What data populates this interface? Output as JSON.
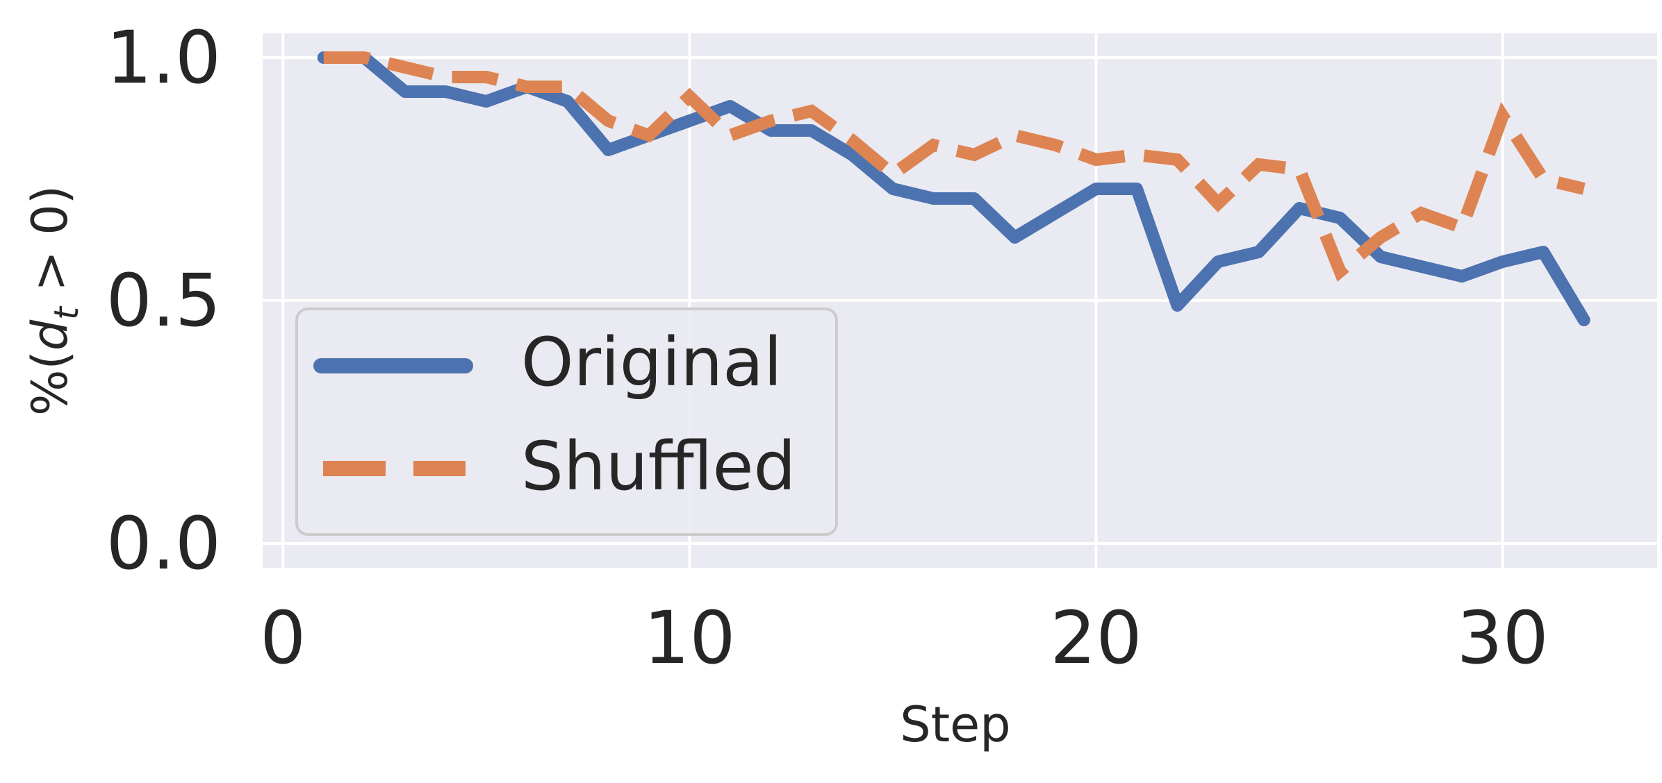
{
  "chart_data": {
    "type": "line",
    "xlabel": "Step",
    "ylabel_parts": {
      "pre": "%(",
      "sym": "d",
      "sub": "t",
      "post": " > 0)"
    },
    "xlim": [
      -0.5,
      33.8
    ],
    "ylim": [
      -0.05,
      1.05
    ],
    "xticks": [
      0,
      10,
      20,
      30
    ],
    "xtick_labels": [
      "0",
      "10",
      "20",
      "30"
    ],
    "yticks": [
      0.0,
      0.5,
      1.0
    ],
    "ytick_labels": [
      "0.0",
      "0.5",
      "1.0"
    ],
    "grid": true,
    "legend_position": "lower-left",
    "background": "#EAEAF2",
    "series": [
      {
        "name": "Original",
        "color": "#4C72B0",
        "dash": "solid",
        "x": [
          1,
          2,
          3,
          4,
          5,
          6,
          7,
          8,
          9,
          10,
          11,
          12,
          13,
          14,
          15,
          16,
          17,
          18,
          19,
          20,
          21,
          22,
          23,
          24,
          25,
          26,
          27,
          28,
          29,
          30,
          31,
          32
        ],
        "y": [
          1.0,
          1.0,
          0.93,
          0.93,
          0.91,
          0.94,
          0.91,
          0.81,
          0.84,
          0.87,
          0.9,
          0.85,
          0.85,
          0.8,
          0.73,
          0.71,
          0.71,
          0.63,
          0.68,
          0.73,
          0.73,
          0.49,
          0.58,
          0.6,
          0.69,
          0.67,
          0.59,
          0.57,
          0.55,
          0.58,
          0.6,
          0.46
        ]
      },
      {
        "name": "Shuffled",
        "color": "#DD8452",
        "dash": "dashed",
        "x": [
          1,
          2,
          3,
          4,
          5,
          6,
          7,
          8,
          9,
          10,
          11,
          12,
          13,
          14,
          15,
          16,
          17,
          18,
          19,
          20,
          21,
          22,
          23,
          24,
          25,
          26,
          27,
          28,
          29,
          30,
          31,
          32
        ],
        "y": [
          1.0,
          1.0,
          0.98,
          0.96,
          0.96,
          0.94,
          0.94,
          0.87,
          0.84,
          0.92,
          0.84,
          0.87,
          0.89,
          0.83,
          0.76,
          0.82,
          0.8,
          0.84,
          0.82,
          0.79,
          0.8,
          0.79,
          0.7,
          0.78,
          0.77,
          0.56,
          0.63,
          0.68,
          0.65,
          0.88,
          0.75,
          0.73
        ]
      }
    ]
  }
}
